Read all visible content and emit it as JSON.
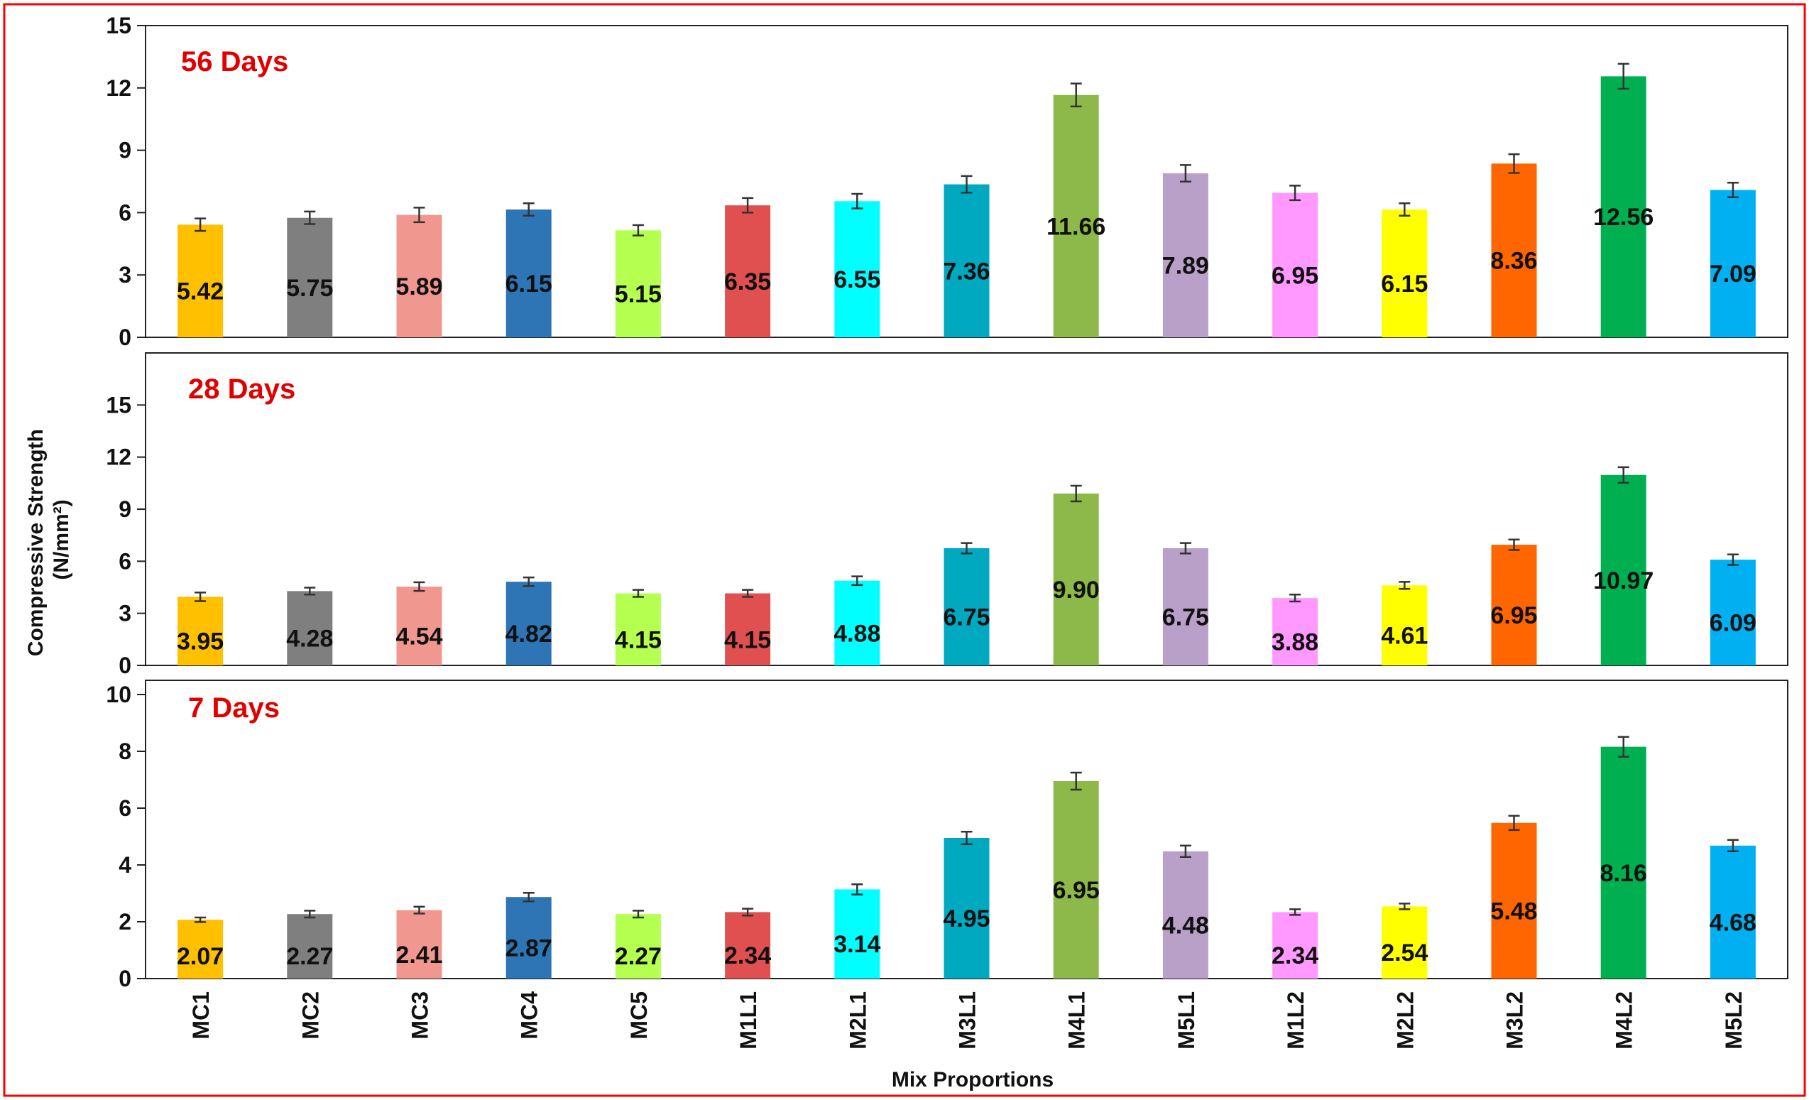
{
  "chart_data": {
    "type": "bar",
    "ylabel_line1": "Compressive Strength",
    "ylabel_line2": "(N/mm²)",
    "xlabel": "Mix Proportions",
    "categories": [
      "MC1",
      "MC2",
      "MC3",
      "MC4",
      "MC5",
      "M1L1",
      "M2L1",
      "M3L1",
      "M4L1",
      "M5L1",
      "M1L2",
      "M2L2",
      "M3L2",
      "M4L2",
      "M5L2"
    ],
    "colors": [
      "#ffc000",
      "#7f7f7f",
      "#f0988f",
      "#2e75b6",
      "#b4ff50",
      "#e05050",
      "#00ffff",
      "#00a8c0",
      "#8db84a",
      "#b8a0c8",
      "#ff99ff",
      "#ffff00",
      "#ff6600",
      "#00b050",
      "#00b0f0"
    ],
    "frame_color": "#ff0000",
    "title_color": "#e00000",
    "panels": [
      {
        "title": "56 Days",
        "ylim": [
          0,
          15
        ],
        "yticks": [
          0,
          3,
          6,
          9,
          12,
          15
        ],
        "values": [
          5.42,
          5.75,
          5.89,
          6.15,
          5.15,
          6.35,
          6.55,
          7.36,
          11.66,
          7.89,
          6.95,
          6.15,
          8.36,
          12.56,
          7.09
        ],
        "labels": [
          "5.42",
          "5.75",
          "5.89",
          "6.15",
          "5.15",
          "6.35",
          "6.55",
          "7.36",
          "11.66",
          "7.89",
          "6.95",
          "6.15",
          "8.36",
          "12.56",
          "7.09"
        ],
        "errors": [
          0.3,
          0.3,
          0.35,
          0.3,
          0.25,
          0.35,
          0.35,
          0.4,
          0.55,
          0.4,
          0.35,
          0.3,
          0.45,
          0.6,
          0.35
        ]
      },
      {
        "title": "28 Days",
        "ylim": [
          0,
          18
        ],
        "yticks": [
          0,
          3,
          6,
          9,
          12,
          15
        ],
        "values": [
          3.95,
          4.28,
          4.54,
          4.82,
          4.15,
          4.15,
          4.88,
          6.75,
          9.9,
          6.75,
          3.88,
          4.61,
          6.95,
          10.97,
          6.09
        ],
        "labels": [
          "3.95",
          "4.28",
          "4.54",
          "4.82",
          "4.15",
          "4.15",
          "4.88",
          "6.75",
          "9.90",
          "6.75",
          "3.88",
          "4.61",
          "6.95",
          "10.97",
          "6.09"
        ],
        "errors": [
          0.25,
          0.2,
          0.25,
          0.25,
          0.2,
          0.2,
          0.25,
          0.3,
          0.45,
          0.3,
          0.2,
          0.2,
          0.3,
          0.45,
          0.3
        ]
      },
      {
        "title": "7 Days",
        "ylim": [
          0,
          10.5
        ],
        "yticks": [
          0,
          2,
          4,
          6,
          8,
          10
        ],
        "values": [
          2.07,
          2.27,
          2.41,
          2.87,
          2.27,
          2.34,
          3.14,
          4.95,
          6.95,
          4.48,
          2.34,
          2.54,
          5.48,
          8.16,
          4.68
        ],
        "labels": [
          "2.07",
          "2.27",
          "2.41",
          "2.87",
          "2.27",
          "2.34",
          "3.14",
          "4.95",
          "6.95",
          "4.48",
          "2.34",
          "2.54",
          "5.48",
          "8.16",
          "4.68"
        ],
        "errors": [
          0.08,
          0.12,
          0.12,
          0.15,
          0.12,
          0.12,
          0.18,
          0.22,
          0.3,
          0.2,
          0.1,
          0.1,
          0.25,
          0.35,
          0.2
        ]
      }
    ]
  }
}
